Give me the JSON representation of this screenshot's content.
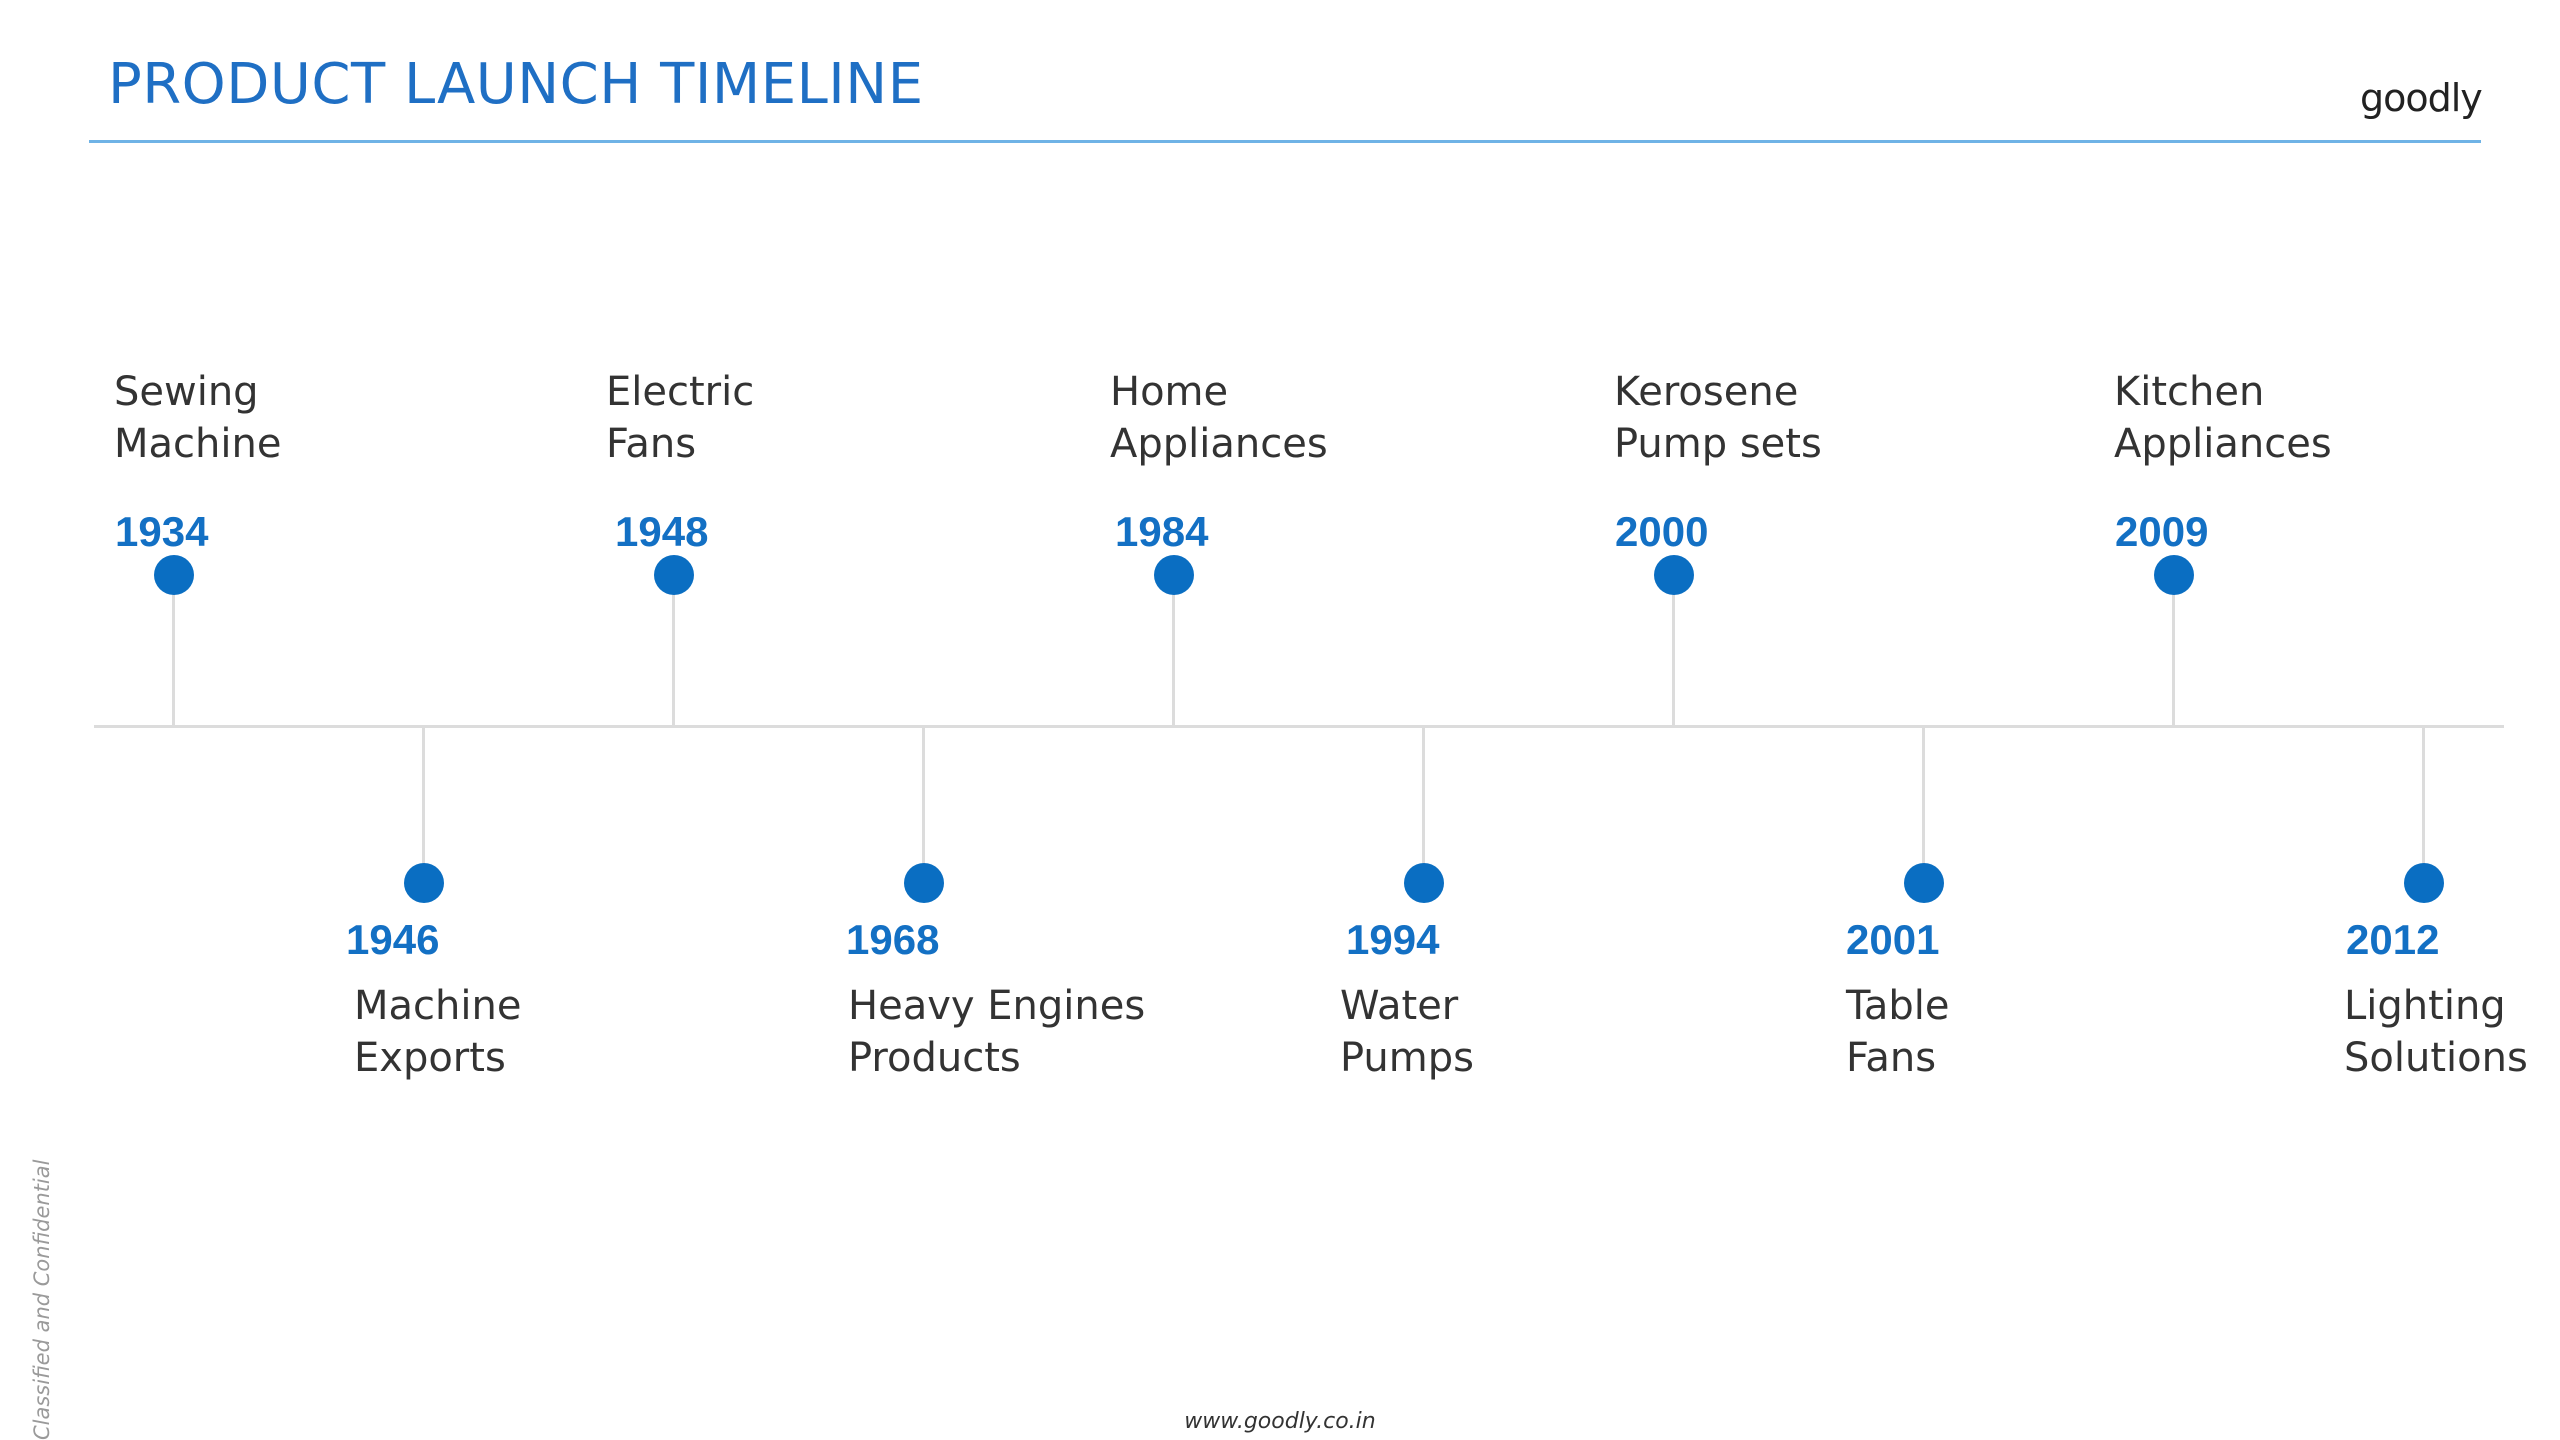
{
  "title": "PRODUCT LAUNCH TIMELINE",
  "logo_text": "goodly",
  "footer_url": "www.goodly.co.in",
  "side_note": "Classified and Confidential",
  "accent_color": "#0a6ec2",
  "timeline": {
    "top_events": [
      {
        "year": "1934",
        "label_line1": "Sewing",
        "label_line2": "Machine"
      },
      {
        "year": "1948",
        "label_line1": "Electric",
        "label_line2": "Fans"
      },
      {
        "year": "1984",
        "label_line1": "Home",
        "label_line2": "Appliances"
      },
      {
        "year": "2000",
        "label_line1": "Kerosene",
        "label_line2": "Pump sets"
      },
      {
        "year": "2009",
        "label_line1": "Kitchen",
        "label_line2": "Appliances"
      }
    ],
    "bottom_events": [
      {
        "year": "1946",
        "label_line1": "Machine",
        "label_line2": "Exports"
      },
      {
        "year": "1968",
        "label_line1": "Heavy Engines",
        "label_line2": "Products"
      },
      {
        "year": "1994",
        "label_line1": "Water",
        "label_line2": "Pumps"
      },
      {
        "year": "2001",
        "label_line1": "Table",
        "label_line2": "Fans"
      },
      {
        "year": "2012",
        "label_line1": "Lighting",
        "label_line2": "Solutions"
      }
    ]
  }
}
